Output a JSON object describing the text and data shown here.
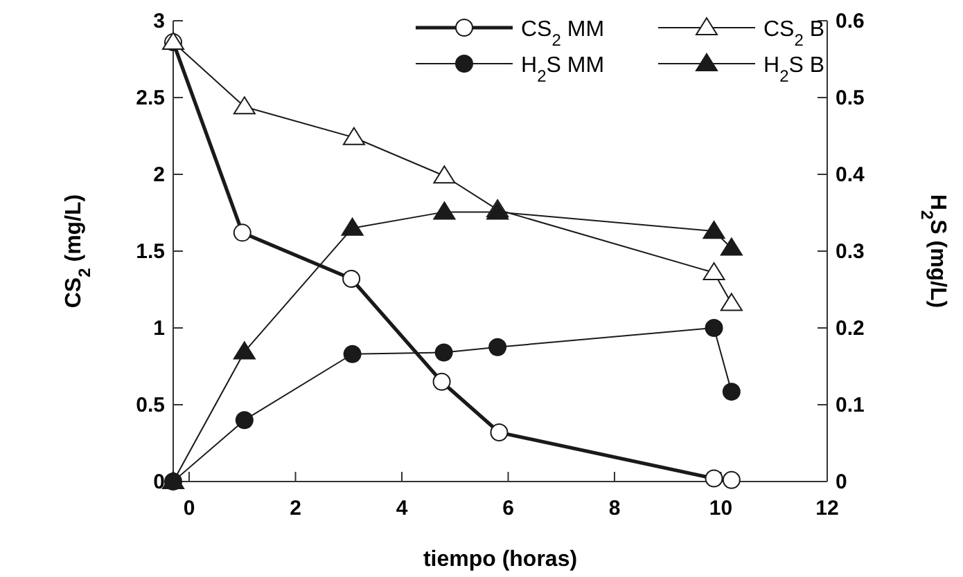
{
  "chart_data": {
    "type": "line",
    "xlabel": "tiempo (horas)",
    "ylabel": "CS$_{2}$ (mg/L)",
    "y2label": "H$_{2}$S (mg/L)",
    "xlim": [
      -0.3,
      12
    ],
    "xticks": [
      0,
      2,
      4,
      6,
      8,
      10,
      12
    ],
    "ylim": [
      0,
      3
    ],
    "yticks": [
      0,
      0.5,
      1,
      1.5,
      2,
      2.5,
      3
    ],
    "y2lim": [
      0,
      0.6
    ],
    "y2ticks": [
      0,
      0.1,
      0.2,
      0.3,
      0.4,
      0.5,
      0.6
    ],
    "legend": "top right",
    "grid": false,
    "line_style": "solid",
    "series": [
      {
        "name": "CS$_{2}$ MM",
        "color": "#1a1a1a",
        "marker": "circle",
        "x": [
          -0.3,
          1.0,
          3.05,
          4.75,
          5.83,
          9.87,
          10.2
        ],
        "values": [
          2.86,
          1.62,
          1.32,
          0.65,
          0.32,
          0.02,
          0.01
        ]
      },
      {
        "name": "H$_{2}$S MM",
        "color": "#1a1a1a",
        "marker": "circle",
        "axis": "y2",
        "x": [
          -0.3,
          1.04,
          3.07,
          4.79,
          5.8,
          9.87,
          10.2
        ],
        "values": [
          0,
          0.08,
          0.166,
          0.168,
          0.175,
          0.2,
          0.117
        ]
      },
      {
        "name": "CS$_{2}$ B",
        "color": "#1a1a1a",
        "marker": "triangle",
        "x": [
          -0.3,
          1.04,
          3.1,
          4.8,
          5.8,
          9.87,
          10.2
        ],
        "values": [
          2.86,
          2.44,
          2.24,
          1.99,
          1.77,
          1.36,
          1.16
        ]
      },
      {
        "name": "H$_{2}$S B",
        "color": "#1a1a1a",
        "marker": "triangle",
        "axis": "y2",
        "x": [
          -0.3,
          1.04,
          3.07,
          4.8,
          5.8,
          9.87,
          10.2
        ],
        "values": [
          0,
          0.169,
          0.33,
          0.351,
          0.351,
          0.326,
          0.304
        ]
      }
    ]
  }
}
